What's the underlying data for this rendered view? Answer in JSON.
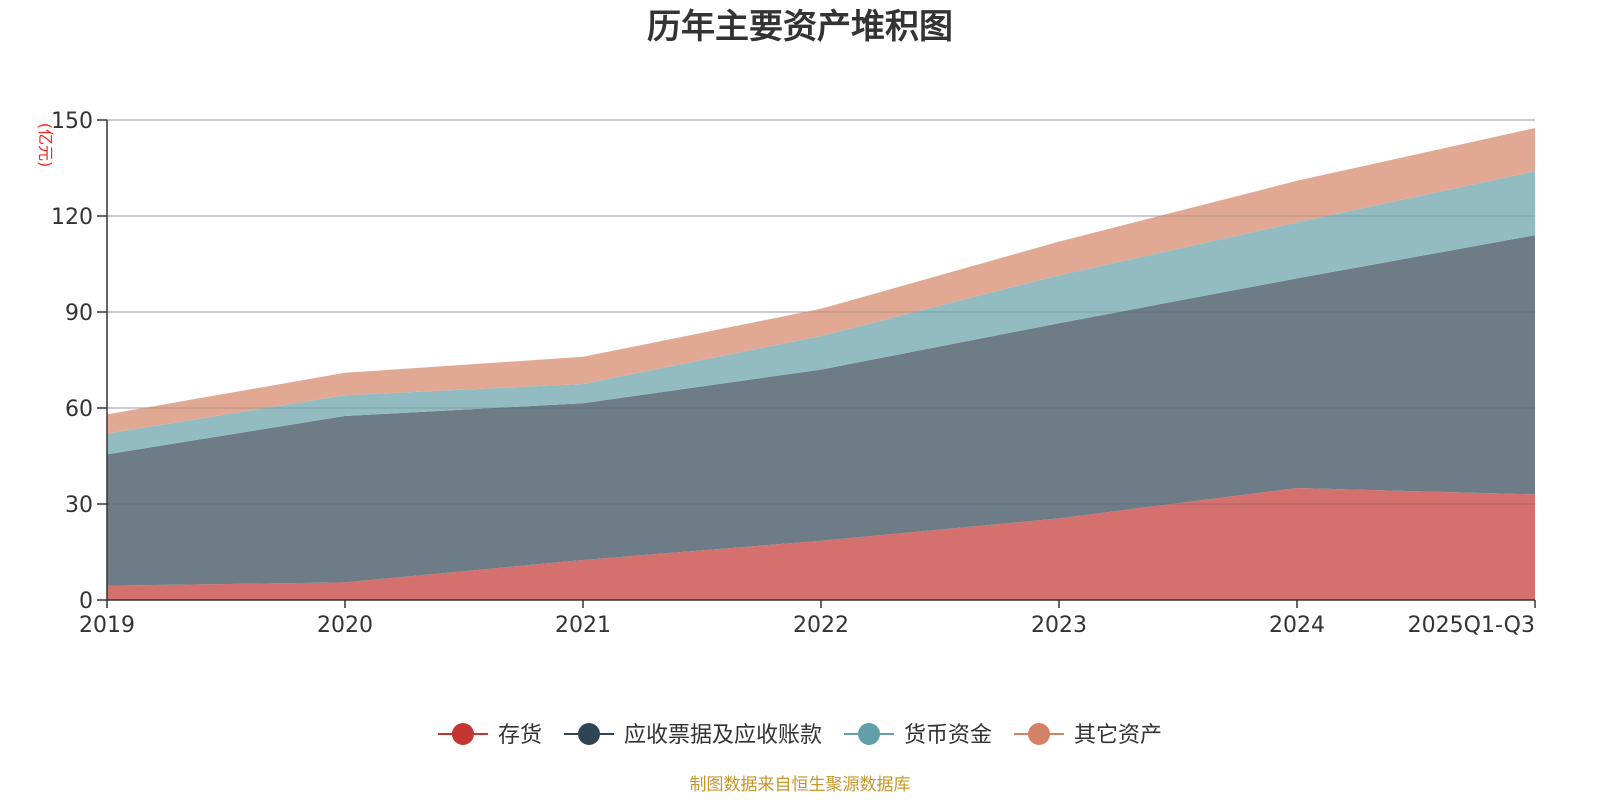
{
  "chart_data": {
    "type": "area",
    "stacked": true,
    "title": "历年主要资产堆积图",
    "ylabel": "(亿元)",
    "xlabel": "",
    "categories": [
      "2019",
      "2020",
      "2021",
      "2022",
      "2023",
      "2024",
      "2025Q1-Q3"
    ],
    "ylim": [
      0,
      150
    ],
    "yticks": [
      "0",
      "30",
      "60",
      "90",
      "120",
      "150"
    ],
    "grid": true,
    "legend_position": "bottom",
    "series": [
      {
        "name": "存货",
        "color": "#c23531",
        "fill": "#d4716f",
        "values": [
          4.5,
          5.5,
          12.5,
          18.5,
          25.5,
          35,
          33
        ]
      },
      {
        "name": "应收票据及应收账款",
        "color": "#2f4554",
        "fill": "#6d7c87",
        "values": [
          41,
          52,
          49,
          53.5,
          61,
          65.5,
          81
        ]
      },
      {
        "name": "货币资金",
        "color": "#61a0a8",
        "fill": "#92bcc1",
        "values": [
          6.5,
          6.5,
          6,
          10.5,
          15,
          17.5,
          20
        ]
      },
      {
        "name": "其它资产",
        "color": "#d48265",
        "fill": "#e1a994",
        "values": [
          6,
          7,
          8.5,
          8.5,
          10.5,
          13,
          13.5
        ]
      }
    ],
    "source": "制图数据来自恒生聚源数据库"
  }
}
